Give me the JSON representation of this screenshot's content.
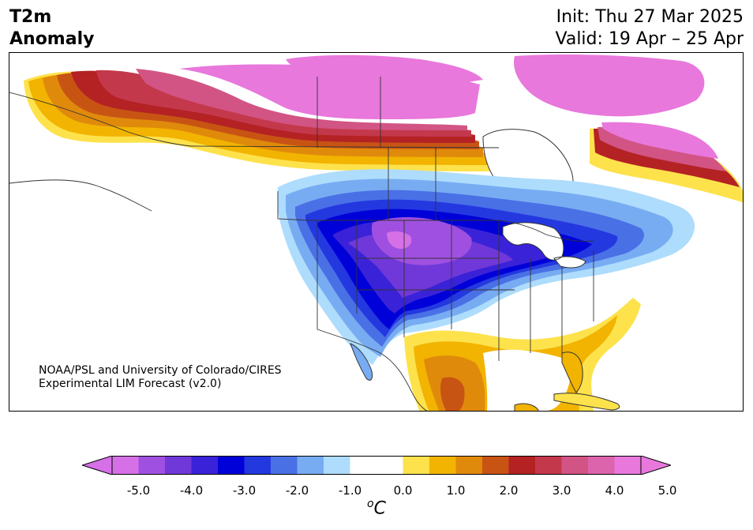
{
  "title": {
    "line1": "T2m",
    "line2": "Anomaly"
  },
  "dates": {
    "init": "Init: Thu 27 Mar 2025",
    "valid": "Valid: 19 Apr – 25 Apr"
  },
  "credit": {
    "line1": "NOAA/PSL and University of Colorado/CIRES",
    "line2": "Experimental LIM Forecast (v2.0)"
  },
  "colorbar": {
    "unit_base": "C",
    "unit_sup": "o",
    "tick_labels": [
      "-5.0",
      "-4.0",
      "-3.0",
      "-2.0",
      "-1.0",
      "0.0",
      "1.0",
      "2.0",
      "3.0",
      "4.0",
      "5.0"
    ],
    "colors": [
      "#d670e6",
      "#a050e0",
      "#7038d8",
      "#3a22d8",
      "#0000d8",
      "#2438e0",
      "#4a70e6",
      "#78acf2",
      "#aedcfc",
      "#ffffff",
      "#ffffff",
      "#fde24c",
      "#f2b400",
      "#e08a0c",
      "#c85414",
      "#b42224",
      "#c4384c",
      "#d25484",
      "#dc64ac",
      "#e878dc"
    ],
    "under_color": "#d670e6",
    "over_color": "#e878dc"
  },
  "map": {
    "projection": "North America",
    "colors": {
      "pink": "#e878dc",
      "rose": "#d25484",
      "crimson": "#c4384c",
      "red": "#b42224",
      "rust": "#c85414",
      "orange": "#e08a0c",
      "gold": "#f2b400",
      "yellow": "#fde24c",
      "pale_blue": "#aedcfc",
      "light_blue": "#78acf2",
      "mid_blue": "#4a70e6",
      "blue": "#2438e0",
      "deep_blue": "#0000d8",
      "indigo": "#3a22d8",
      "violet": "#7038d8",
      "purple": "#a050e0",
      "magenta": "#d670e6",
      "border": "#333333"
    }
  }
}
